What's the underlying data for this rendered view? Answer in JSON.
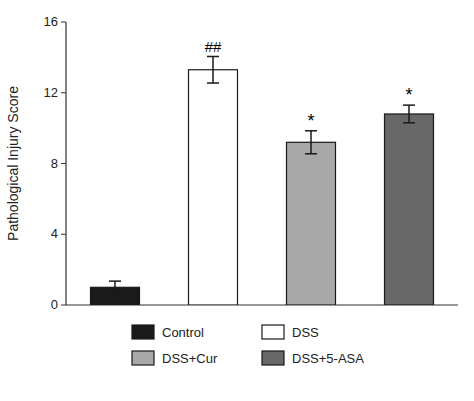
{
  "chart_data": {
    "type": "bar",
    "categories": [
      "Control",
      "DSS",
      "DSS+Cur",
      "DSS+5-ASA"
    ],
    "values": [
      1.0,
      13.3,
      9.2,
      10.8
    ],
    "errors": [
      0.35,
      0.75,
      0.65,
      0.5
    ],
    "colors": [
      "#1a1a1a",
      "#ffffff",
      "#a8a8a8",
      "#686868"
    ],
    "ylabel": "Pathological Injury Score",
    "ylim": [
      0,
      16
    ],
    "yticks": [
      0,
      4,
      8,
      12,
      16
    ],
    "annotations": [
      {
        "text": "##",
        "category": "DSS"
      },
      {
        "text": "*",
        "category": "DSS+Cur"
      },
      {
        "text": "*",
        "category": "DSS+5-ASA"
      }
    ],
    "tick_labels": "y",
    "legend": "bottom",
    "grid": false
  }
}
